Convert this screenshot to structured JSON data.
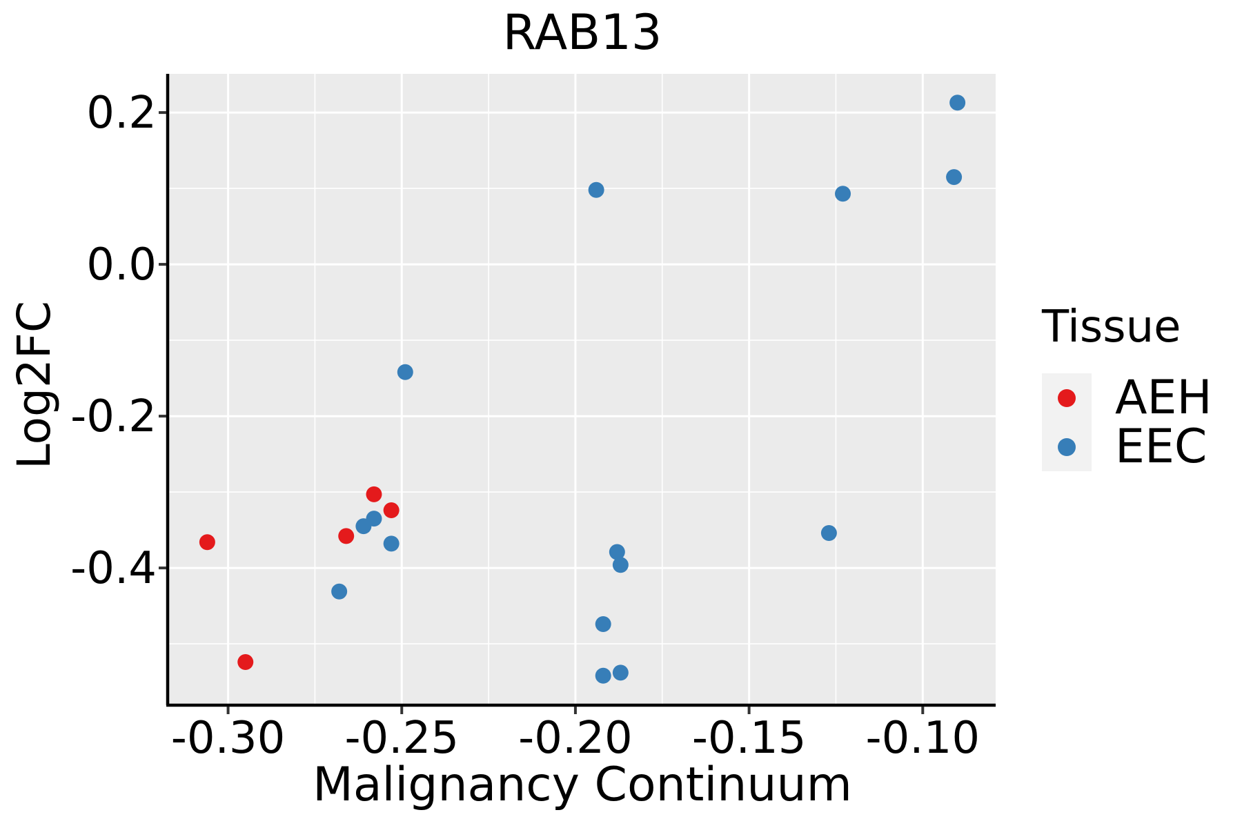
{
  "title": "RAB13",
  "axes": {
    "x": {
      "label": "Malignancy Continuum",
      "ticks": [
        -0.3,
        -0.25,
        -0.2,
        -0.15,
        -0.1
      ],
      "tick_labels": [
        "-0.30",
        "-0.25",
        "-0.20",
        "-0.15",
        "-0.10"
      ],
      "minor_ticks": [
        -0.275,
        -0.225,
        -0.175,
        -0.125
      ],
      "range": [
        -0.317,
        -0.079
      ]
    },
    "y": {
      "label": "Log2FC",
      "ticks": [
        0.2,
        0.0,
        -0.2,
        -0.4
      ],
      "tick_labels": [
        "0.2",
        "0.0",
        "-0.2",
        "-0.4"
      ],
      "minor_ticks": [
        0.1,
        -0.1,
        -0.3,
        -0.5
      ],
      "range": [
        -0.579,
        0.251
      ]
    }
  },
  "legend": {
    "title": "Tissue",
    "entries": [
      {
        "label": "AEH",
        "color": "#e41a1c"
      },
      {
        "label": "EEC",
        "color": "#377eb8"
      }
    ]
  },
  "style": {
    "panel_bg": "#ebebeb",
    "grid_color": "#ffffff",
    "spine_color": "#000000",
    "tick_color": "#333333",
    "legend_key_bg": "#f2f2f2",
    "text_color": "#000000"
  },
  "chart_data": {
    "type": "scatter",
    "title": "RAB13",
    "xlabel": "Malignancy Continuum",
    "ylabel": "Log2FC",
    "xlim": [
      -0.317,
      -0.079
    ],
    "ylim": [
      -0.579,
      0.251
    ],
    "x_ticks": [
      -0.3,
      -0.25,
      -0.2,
      -0.15,
      -0.1
    ],
    "y_ticks": [
      0.2,
      0.0,
      -0.2,
      -0.4
    ],
    "x_minor_ticks": [
      -0.275,
      -0.225,
      -0.175,
      -0.125
    ],
    "y_minor_ticks": [
      0.1,
      -0.1,
      -0.3,
      -0.5
    ],
    "grid": true,
    "legend_title": "Tissue",
    "legend_position": "right",
    "series": [
      {
        "name": "AEH",
        "color": "#e41a1c",
        "points": [
          [
            -0.306,
            -0.366
          ],
          [
            -0.295,
            -0.524
          ],
          [
            -0.266,
            -0.358
          ],
          [
            -0.258,
            -0.303
          ],
          [
            -0.253,
            -0.324
          ]
        ]
      },
      {
        "name": "EEC",
        "color": "#377eb8",
        "points": [
          [
            -0.268,
            -0.431
          ],
          [
            -0.261,
            -0.345
          ],
          [
            -0.258,
            -0.335
          ],
          [
            -0.253,
            -0.368
          ],
          [
            -0.249,
            -0.142
          ],
          [
            -0.194,
            0.098
          ],
          [
            -0.192,
            -0.474
          ],
          [
            -0.192,
            -0.542
          ],
          [
            -0.188,
            -0.379
          ],
          [
            -0.187,
            -0.396
          ],
          [
            -0.187,
            -0.538
          ],
          [
            -0.127,
            -0.354
          ],
          [
            -0.123,
            0.093
          ],
          [
            -0.091,
            0.115
          ],
          [
            -0.09,
            0.213
          ]
        ]
      }
    ]
  }
}
